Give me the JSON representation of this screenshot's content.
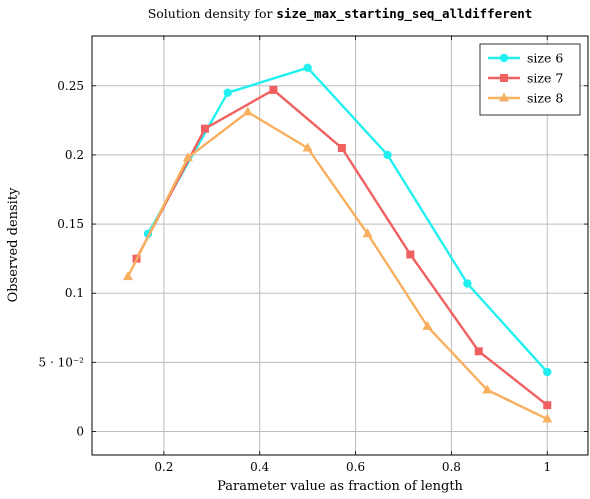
{
  "chart_data": {
    "type": "line",
    "title_prefix": "Solution density for ",
    "title_code": "size_max_starting_seq_alldifferent",
    "xlabel": "Parameter value as fraction of length",
    "ylabel": "Observed density",
    "xlim": [
      0.05,
      1.085
    ],
    "ylim": [
      -0.017,
      0.286
    ],
    "xticks": [
      {
        "value": 0.2,
        "label": "0.2"
      },
      {
        "value": 0.4,
        "label": "0.4"
      },
      {
        "value": 0.6,
        "label": "0.6"
      },
      {
        "value": 0.8,
        "label": "0.8"
      },
      {
        "value": 1.0,
        "label": "1"
      }
    ],
    "yticks": [
      {
        "value": 0,
        "label": "0"
      },
      {
        "value": 0.05,
        "label": "5 · 10⁻²"
      },
      {
        "value": 0.1,
        "label": "0.1"
      },
      {
        "value": 0.15,
        "label": "0.15"
      },
      {
        "value": 0.2,
        "label": "0.2"
      },
      {
        "value": 0.25,
        "label": "0.25"
      }
    ],
    "grid": true,
    "legend_position": "top-right",
    "series": [
      {
        "name": "size 6",
        "color": "#22f0f0",
        "marker": "circle",
        "x": [
          0.1667,
          0.3333,
          0.5,
          0.6667,
          0.8333,
          1.0
        ],
        "y": [
          0.143,
          0.245,
          0.263,
          0.2,
          0.107,
          0.043
        ]
      },
      {
        "name": "size 7",
        "color": "#f06060",
        "marker": "square",
        "x": [
          0.1429,
          0.2857,
          0.4286,
          0.5714,
          0.7143,
          0.8571,
          1.0
        ],
        "y": [
          0.125,
          0.219,
          0.247,
          0.205,
          0.128,
          0.058,
          0.019
        ]
      },
      {
        "name": "size 8",
        "color": "#f8b060",
        "marker": "triangle",
        "x": [
          0.125,
          0.25,
          0.375,
          0.5,
          0.625,
          0.75,
          0.875,
          1.0
        ],
        "y": [
          0.112,
          0.198,
          0.231,
          0.205,
          0.143,
          0.076,
          0.03,
          0.009
        ]
      }
    ]
  }
}
